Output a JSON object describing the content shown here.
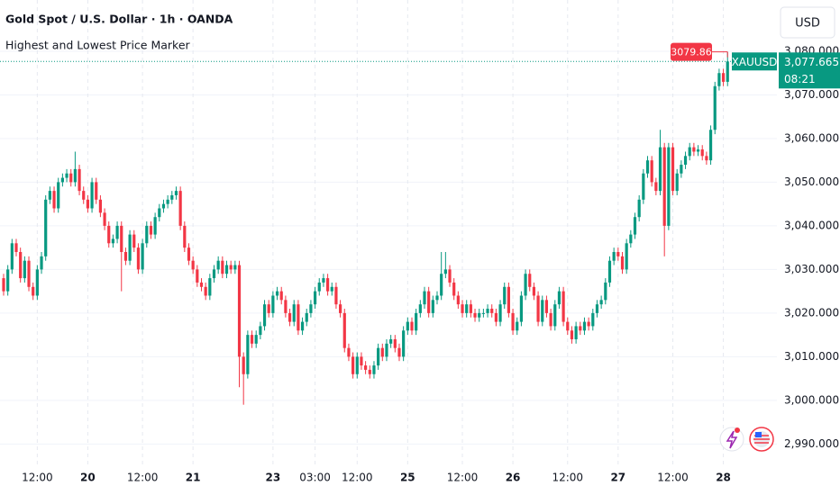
{
  "chart_data": {
    "type": "candlestick",
    "title": "Gold Spot / U.S. Dollar · 1h · OANDA",
    "subtitle": "Highest and Lowest Price Marker",
    "currency": "USD",
    "up_color": "#089981",
    "down_color": "#f23645",
    "grid": true,
    "categories": [
      null,
      null,
      null,
      null,
      null,
      null,
      null,
      null,
      "12:00",
      null,
      null,
      null,
      null,
      null,
      null,
      null,
      null,
      null,
      null,
      null,
      "20",
      null,
      null,
      null,
      null,
      null,
      null,
      null,
      null,
      null,
      null,
      null,
      null,
      "12:00",
      null,
      null,
      null,
      null,
      null,
      null,
      null,
      null,
      null,
      null,
      null,
      "21",
      null,
      null,
      null,
      null,
      null,
      null,
      null,
      null,
      null,
      null,
      null,
      null,
      null,
      null,
      null,
      null,
      null,
      null,
      "23",
      null,
      null,
      null,
      null,
      null,
      null,
      null,
      null,
      null,
      "03:00",
      null,
      null,
      null,
      null,
      null,
      null,
      null,
      null,
      null,
      "12:00",
      null,
      null,
      null,
      null,
      null,
      null,
      null,
      null,
      null,
      null,
      null,
      "25",
      null,
      null,
      null,
      null,
      null,
      null,
      null,
      null,
      null,
      null,
      null,
      null,
      "12:00",
      null,
      null,
      null,
      null,
      null,
      null,
      null,
      null,
      null,
      null,
      null,
      "26",
      null,
      null,
      null,
      null,
      null,
      null,
      null,
      null,
      null,
      null,
      null,
      null,
      "12:00",
      null,
      null,
      null,
      null,
      null,
      null,
      null,
      null,
      null,
      null,
      null,
      "27",
      null,
      null,
      null,
      null,
      null,
      null,
      null,
      null,
      null,
      null,
      null,
      null,
      "12:00",
      null,
      null,
      null,
      null,
      null,
      null,
      null,
      null,
      null,
      null,
      null,
      "28",
      null
    ],
    "open": [
      3028,
      3025,
      3030,
      3036,
      3034,
      3028,
      3032,
      3026,
      3024,
      3030,
      3033,
      3046,
      3048,
      3044,
      3050,
      3051,
      3052,
      3050,
      3053,
      3048,
      3046,
      3044,
      3050,
      3046,
      3043,
      3040,
      3036,
      3037,
      3040,
      3034,
      3032,
      3038,
      3035,
      3030,
      3036,
      3040,
      3038,
      3042,
      3044,
      3045,
      3046,
      3047,
      3048,
      3040,
      3035,
      3032,
      3030,
      3027,
      3026,
      3024,
      3028,
      3030,
      3032,
      3029,
      3031,
      3030,
      3031,
      3010,
      3006,
      3015,
      3013,
      3015,
      3017,
      3022,
      3020,
      3024,
      3025,
      3023,
      3020,
      3018,
      3022,
      3016,
      3018,
      3020,
      3022,
      3025,
      3027,
      3028,
      3025,
      3026,
      3022,
      3020,
      3012,
      3010,
      3006,
      3010,
      3008,
      3007,
      3006,
      3008,
      3012,
      3010,
      3013,
      3014,
      3012,
      3010,
      3016,
      3018,
      3016,
      3020,
      3022,
      3025,
      3020,
      3023,
      3024,
      3029,
      3030,
      3027,
      3024,
      3022,
      3020,
      3022,
      3020,
      3019,
      3020,
      3020,
      3021,
      3020,
      3018,
      3022,
      3026,
      3020,
      3016,
      3018,
      3024,
      3029,
      3026,
      3024,
      3018,
      3023,
      3020,
      3017,
      3022,
      3025,
      3018,
      3016,
      3014,
      3017,
      3016,
      3018,
      3017,
      3020,
      3022,
      3023,
      3027,
      3032,
      3034,
      3033,
      3030,
      3036,
      3038,
      3042,
      3046,
      3052,
      3055,
      3050,
      3048,
      3058,
      3040,
      3058,
      3048,
      3052,
      3054,
      3056,
      3058,
      3057,
      3057.5,
      3056,
      3055,
      3062,
      3072,
      3075,
      3073
    ],
    "high": [
      3029,
      3031,
      3037,
      3037,
      3035,
      3033,
      3033,
      3027,
      3031,
      3034,
      3047,
      3049,
      3049,
      3051,
      3052,
      3053,
      3053,
      3057,
      3054,
      3049,
      3047,
      3051,
      3051,
      3047,
      3044,
      3041,
      3038,
      3041,
      3041,
      3035,
      3039,
      3039,
      3036,
      3037,
      3041,
      3041,
      3043,
      3045,
      3046,
      3047,
      3048,
      3049,
      3049,
      3041,
      3036,
      3033,
      3031,
      3028,
      3027,
      3029,
      3031,
      3033,
      3033,
      3032,
      3032,
      3032,
      3032,
      3011,
      3016,
      3016,
      3016,
      3018,
      3023,
      3023,
      3025,
      3026,
      3026,
      3024,
      3021,
      3023,
      3023,
      3019,
      3021,
      3023,
      3026,
      3028,
      3029,
      3029,
      3027,
      3027,
      3023,
      3021,
      3013,
      3011,
      3011,
      3011,
      3009,
      3008,
      3009,
      3013,
      3013,
      3014,
      3015,
      3015,
      3013,
      3017,
      3019,
      3019,
      3021,
      3023,
      3026,
      3026,
      3024,
      3025,
      3034,
      3034,
      3031,
      3028,
      3025,
      3023,
      3023,
      3023,
      3021,
      3021,
      3021,
      3022,
      3022,
      3021,
      3023,
      3027,
      3027,
      3021,
      3019,
      3025,
      3030,
      3030,
      3027,
      3025,
      3024,
      3024,
      3021,
      3023,
      3026,
      3026,
      3019,
      3017,
      3018,
      3018,
      3019,
      3019,
      3021,
      3023,
      3024,
      3028,
      3033,
      3035,
      3035,
      3034,
      3037,
      3039,
      3043,
      3047,
      3053,
      3056,
      3056,
      3051,
      3062,
      3059,
      3059,
      3059,
      3053,
      3055,
      3057,
      3059,
      3059,
      3058.5,
      3058.5,
      3057,
      3063,
      3073,
      3076,
      3076,
      3079.86
    ],
    "low": [
      3024,
      3024,
      3029,
      3033,
      3027,
      3027,
      3025,
      3023,
      3023,
      3029,
      3032,
      3045,
      3043,
      3043,
      3049,
      3050,
      3049,
      3049,
      3047,
      3045,
      3043,
      3043,
      3045,
      3042,
      3039,
      3035,
      3035,
      3036,
      3025,
      3031,
      3031,
      3034,
      3029,
      3029,
      3035,
      3037,
      3037,
      3041,
      3043,
      3044,
      3045,
      3046,
      3039,
      3034,
      3031,
      3029,
      3026,
      3025,
      3023,
      3023,
      3027,
      3029,
      3028,
      3028,
      3029,
      3029,
      3003,
      2999,
      3005,
      3012,
      3012,
      3014,
      3016,
      3019,
      3019,
      3023,
      3022,
      3019,
      3017,
      3017,
      3015,
      3015,
      3017,
      3019,
      3021,
      3024,
      3026,
      3024,
      3024,
      3021,
      3019,
      3011,
      3009,
      3005,
      3005,
      3007,
      3006,
      3005,
      3005,
      3007,
      3009,
      3009,
      3012,
      3011,
      3009,
      3009,
      3015,
      3015,
      3015,
      3019,
      3021,
      3019,
      3019,
      3022,
      3023,
      3028,
      3026,
      3023,
      3021,
      3019,
      3019,
      3019,
      3018,
      3018,
      3019,
      3019,
      3019,
      3017,
      3017,
      3021,
      3019,
      3015,
      3015,
      3017,
      3023,
      3025,
      3023,
      3017,
      3017,
      3019,
      3016,
      3016,
      3021,
      3017,
      3015,
      3013,
      3013,
      3015,
      3015,
      3016,
      3016,
      3019,
      3021,
      3022,
      3026,
      3031,
      3032,
      3029,
      3029,
      3035,
      3037,
      3041,
      3045,
      3051,
      3049,
      3047,
      3047,
      3033,
      3039,
      3047,
      3047,
      3051,
      3053,
      3055,
      3056,
      3056,
      3055,
      3054,
      3054,
      3061,
      3071,
      3072,
      3072
    ],
    "close": [
      3025,
      3030,
      3036,
      3034,
      3028,
      3032,
      3026,
      3024,
      3030,
      3033,
      3046,
      3048,
      3044,
      3050,
      3051,
      3052,
      3050,
      3053,
      3048,
      3046,
      3044,
      3050,
      3046,
      3043,
      3040,
      3036,
      3037,
      3040,
      3034,
      3032,
      3038,
      3035,
      3030,
      3036,
      3040,
      3038,
      3042,
      3044,
      3045,
      3046,
      3047,
      3048,
      3040,
      3035,
      3032,
      3030,
      3027,
      3026,
      3024,
      3028,
      3030,
      3032,
      3029,
      3031,
      3030,
      3031,
      3010,
      3006,
      3015,
      3013,
      3015,
      3017,
      3022,
      3020,
      3024,
      3025,
      3023,
      3020,
      3018,
      3022,
      3016,
      3018,
      3020,
      3022,
      3025,
      3027,
      3028,
      3025,
      3026,
      3022,
      3020,
      3012,
      3010,
      3006,
      3010,
      3008,
      3007,
      3006,
      3008,
      3012,
      3010,
      3013,
      3014,
      3012,
      3010,
      3016,
      3018,
      3016,
      3020,
      3022,
      3025,
      3020,
      3023,
      3024,
      3029,
      3030,
      3027,
      3024,
      3022,
      3020,
      3022,
      3020,
      3019,
      3020,
      3020,
      3021,
      3020,
      3018,
      3022,
      3026,
      3020,
      3016,
      3018,
      3024,
      3029,
      3026,
      3024,
      3018,
      3023,
      3020,
      3017,
      3022,
      3025,
      3018,
      3016,
      3014,
      3017,
      3016,
      3018,
      3017,
      3020,
      3022,
      3023,
      3027,
      3032,
      3034,
      3033,
      3030,
      3036,
      3038,
      3042,
      3046,
      3052,
      3055,
      3050,
      3048,
      3058,
      3040,
      3058,
      3048,
      3052,
      3054,
      3056,
      3058,
      3057,
      3057.5,
      3056,
      3055,
      3062,
      3072,
      3075,
      3073,
      3077.665
    ],
    "ylim": [
      2984.5,
      3091.75
    ],
    "yticks": [
      {
        "value": 2990,
        "label": "2,990.000"
      },
      {
        "value": 3000,
        "label": "3,000.000"
      },
      {
        "value": 3010,
        "label": "3,010.000"
      },
      {
        "value": 3020,
        "label": "3,020.000"
      },
      {
        "value": 3030,
        "label": "3,030.000"
      },
      {
        "value": 3040,
        "label": "3,040.000"
      },
      {
        "value": 3050,
        "label": "3,050.000"
      },
      {
        "value": 3060,
        "label": "3,060.000"
      },
      {
        "value": 3070,
        "label": "3,070.000"
      },
      {
        "value": 3080,
        "label": "3,080.000"
      }
    ],
    "high_marker": 3079.86,
    "last_price": {
      "symbol": "XAUUSD",
      "value": 3077.665,
      "label": "3,077.665",
      "countdown": "08:21"
    }
  }
}
